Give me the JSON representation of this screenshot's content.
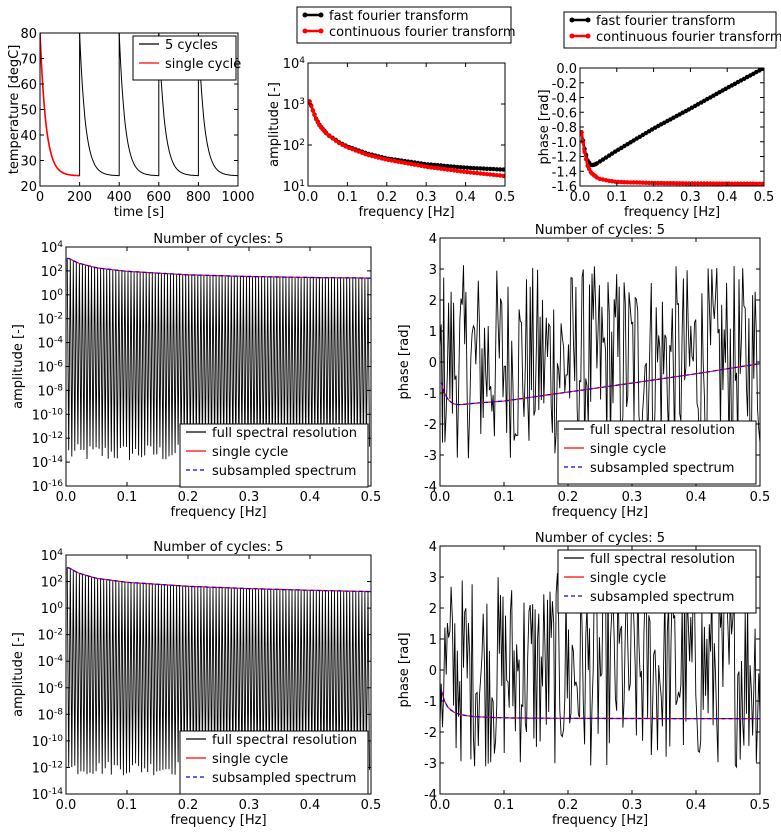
{
  "chart_data": [
    {
      "id": "p1",
      "type": "line",
      "xlabel": "time [s]",
      "ylabel": "temperature [degC]",
      "xlim": [
        0,
        1000
      ],
      "ylim": [
        20,
        80
      ],
      "xticks": [
        0,
        200,
        400,
        600,
        800,
        1000
      ],
      "yticks": [
        20,
        30,
        40,
        50,
        60,
        70,
        80
      ],
      "legend_position": "top-right, inside",
      "series": [
        {
          "name": "5 cycles",
          "color": "#000000",
          "style": "solid",
          "decay": {
            "t_start": [
              0,
              200,
              400,
              600,
              800
            ],
            "t_end": [
              200,
              400,
              600,
              800,
              1000
            ],
            "ambient": 24,
            "peak": 80,
            "tau_s": 30
          }
        },
        {
          "name": "single cycle",
          "color": "#ff0000",
          "style": "solid",
          "decay": {
            "t_start": [
              0
            ],
            "t_end": [
              200
            ],
            "ambient": 24,
            "peak": 80,
            "tau_s": 30
          }
        }
      ]
    },
    {
      "id": "p2",
      "type": "line",
      "xlabel": "frequency [Hz]",
      "ylabel": "amplitude [-]",
      "yscale": "log",
      "xlim": [
        0,
        0.5
      ],
      "ylim": [
        10,
        10000
      ],
      "xticks": [
        "0.0",
        "0.1",
        "0.2",
        "0.3",
        "0.4",
        "0.5"
      ],
      "yticks_exp": [
        1,
        2,
        3,
        4
      ],
      "legend_position": "above plot",
      "series": [
        {
          "name": "fast fourier transform",
          "color": "#000000",
          "marker": "dot",
          "x": [
            0.005,
            0.01,
            0.02,
            0.03,
            0.05,
            0.08,
            0.1,
            0.15,
            0.2,
            0.3,
            0.4,
            0.5
          ],
          "y": [
            1150,
            800,
            450,
            300,
            180,
            115,
            92,
            62,
            47,
            34,
            28,
            25
          ]
        },
        {
          "name": "continuous fourier transform",
          "color": "#ff0000",
          "marker": "dot",
          "x": [
            0.005,
            0.01,
            0.02,
            0.03,
            0.05,
            0.08,
            0.1,
            0.15,
            0.2,
            0.3,
            0.4,
            0.5
          ],
          "y": [
            1150,
            790,
            440,
            290,
            175,
            110,
            88,
            58,
            44,
            29.5,
            22,
            17.5
          ]
        }
      ]
    },
    {
      "id": "p3",
      "type": "line",
      "xlabel": "frequency [Hz]",
      "ylabel": "phase [rad]",
      "xlim": [
        0,
        0.5
      ],
      "ylim": [
        -1.6,
        0.0
      ],
      "xticks": [
        "0.0",
        "0.1",
        "0.2",
        "0.3",
        "0.4",
        "0.5"
      ],
      "yticks": [
        "-1.6",
        "-1.4",
        "-1.2",
        "-1.0",
        "-0.8",
        "-0.6",
        "-0.4",
        "-0.2",
        "0.0"
      ],
      "legend_position": "above plot",
      "series": [
        {
          "name": "fast fourier transform",
          "color": "#000000",
          "marker": "dot",
          "x": [
            0.005,
            0.01,
            0.02,
            0.03,
            0.04,
            0.06,
            0.1,
            0.2,
            0.3,
            0.4,
            0.5
          ],
          "y": [
            -0.87,
            -1.05,
            -1.25,
            -1.32,
            -1.31,
            -1.25,
            -1.12,
            -0.82,
            -0.55,
            -0.27,
            0.0
          ]
        },
        {
          "name": "continuous fourier transform",
          "color": "#ff0000",
          "marker": "dot",
          "x": [
            0.005,
            0.01,
            0.02,
            0.03,
            0.05,
            0.08,
            0.1,
            0.2,
            0.3,
            0.4,
            0.5
          ],
          "y": [
            -0.87,
            -1.08,
            -1.32,
            -1.42,
            -1.5,
            -1.53,
            -1.545,
            -1.56,
            -1.565,
            -1.568,
            -1.57
          ]
        }
      ]
    },
    {
      "id": "p4",
      "type": "line",
      "title": "Number of cycles: 5",
      "xlabel": "frequency [Hz]",
      "ylabel": "amplitude [-]",
      "yscale": "log",
      "xlim": [
        0,
        0.5
      ],
      "ylim": [
        1e-16,
        10000.0
      ],
      "xticks": [
        "0.0",
        "0.1",
        "0.2",
        "0.3",
        "0.4",
        "0.5"
      ],
      "yticks_exp": [
        -16,
        -14,
        -12,
        -10,
        -8,
        -6,
        -4,
        -2,
        0,
        2,
        4
      ],
      "legend_position": "lower right",
      "envelope": {
        "x": [
          0.005,
          0.01,
          0.02,
          0.05,
          0.1,
          0.2,
          0.3,
          0.4,
          0.5
        ],
        "y": [
          1150,
          800,
          450,
          180,
          92,
          47,
          34,
          28,
          25
        ]
      },
      "floor_exp_range": [
        -14,
        -12.5
      ],
      "n_peaks": 100,
      "series": [
        {
          "name": "full spectral resolution",
          "color": "#000000",
          "style": "solid"
        },
        {
          "name": "single cycle",
          "color": "#ff0000",
          "style": "solid"
        },
        {
          "name": "subsampled spectrum",
          "color": "#0000ff",
          "style": "dashed"
        }
      ]
    },
    {
      "id": "p5",
      "type": "line",
      "title": "Number of cycles: 5",
      "xlabel": "frequency [Hz]",
      "ylabel": "phase [rad]",
      "xlim": [
        0,
        0.5
      ],
      "ylim": [
        -4,
        4
      ],
      "xticks": [
        "0.0",
        "0.1",
        "0.2",
        "0.3",
        "0.4",
        "0.5"
      ],
      "yticks": [
        "-4",
        "-3",
        "-2",
        "-1",
        "0",
        "1",
        "2",
        "3",
        "4"
      ],
      "legend_position": "lower right",
      "smooth": {
        "x": [
          0.0,
          0.005,
          0.01,
          0.02,
          0.03,
          0.04,
          0.06,
          0.1,
          0.2,
          0.3,
          0.4,
          0.5
        ],
        "y": [
          -0.5,
          -0.9,
          -1.15,
          -1.35,
          -1.38,
          -1.36,
          -1.32,
          -1.26,
          -0.97,
          -0.68,
          -0.38,
          -0.05
        ]
      },
      "noise_range": [
        -3.14,
        3.14
      ],
      "series": [
        {
          "name": "full spectral resolution",
          "color": "#000000",
          "style": "solid"
        },
        {
          "name": "single cycle",
          "color": "#ff0000",
          "style": "solid"
        },
        {
          "name": "subsampled spectrum",
          "color": "#0000ff",
          "style": "dashed"
        }
      ]
    },
    {
      "id": "p6",
      "type": "line",
      "title": "Number of cycles: 5",
      "xlabel": "frequency [Hz]",
      "ylabel": "amplitude [-]",
      "yscale": "log",
      "xlim": [
        0,
        0.5
      ],
      "ylim": [
        1e-14,
        10000.0
      ],
      "xticks": [
        "0.0",
        "0.1",
        "0.2",
        "0.3",
        "0.4",
        "0.5"
      ],
      "yticks_exp": [
        -14,
        -12,
        -10,
        -8,
        -6,
        -4,
        -2,
        0,
        2,
        4
      ],
      "legend_position": "lower right",
      "envelope": {
        "x": [
          0.005,
          0.01,
          0.02,
          0.05,
          0.1,
          0.2,
          0.3,
          0.4,
          0.5
        ],
        "y": [
          1150,
          790,
          440,
          175,
          88,
          44,
          29.5,
          22,
          17.5
        ]
      },
      "floor_exp_range": [
        -12.6,
        -11.5
      ],
      "n_peaks": 100,
      "series": [
        {
          "name": "full spectral resolution",
          "color": "#000000",
          "style": "solid"
        },
        {
          "name": "single cycle",
          "color": "#ff0000",
          "style": "solid"
        },
        {
          "name": "subsampled spectrum",
          "color": "#0000ff",
          "style": "dashed"
        }
      ]
    },
    {
      "id": "p7",
      "type": "line",
      "title": "Number of cycles: 5",
      "xlabel": "frequency [Hz]",
      "ylabel": "phase [rad]",
      "xlim": [
        0,
        0.5
      ],
      "ylim": [
        -4,
        4
      ],
      "xticks": [
        "0.0",
        "0.1",
        "0.2",
        "0.3",
        "0.4",
        "0.5"
      ],
      "yticks": [
        "-4",
        "-3",
        "-2",
        "-1",
        "0",
        "1",
        "2",
        "3",
        "4"
      ],
      "legend_position": "top right",
      "smooth": {
        "x": [
          0.0,
          0.005,
          0.01,
          0.02,
          0.03,
          0.05,
          0.08,
          0.1,
          0.2,
          0.3,
          0.4,
          0.5
        ],
        "y": [
          -0.5,
          -0.9,
          -1.15,
          -1.35,
          -1.43,
          -1.5,
          -1.53,
          -1.545,
          -1.56,
          -1.565,
          -1.568,
          -1.57
        ]
      },
      "noise_range": [
        -3.14,
        3.14
      ],
      "series": [
        {
          "name": "full spectral resolution",
          "color": "#000000",
          "style": "solid"
        },
        {
          "name": "single cycle",
          "color": "#ff0000",
          "style": "solid"
        },
        {
          "name": "subsampled spectrum",
          "color": "#0000ff",
          "style": "dashed"
        }
      ]
    }
  ]
}
